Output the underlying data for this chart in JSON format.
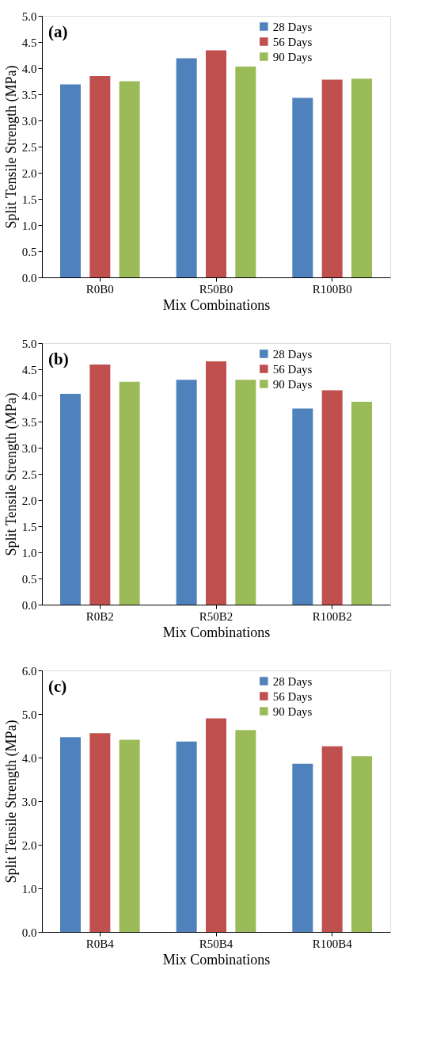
{
  "chart_data": [
    {
      "type": "bar",
      "xlabel": "Mix Combinations",
      "ylabel": "Split Tensile Strength (MPa)",
      "annotations": [
        "(a)"
      ],
      "categories": [
        "R0B0",
        "R50B0",
        "R100B0"
      ],
      "series": [
        {
          "name": "28 Days",
          "color": "#4f81bd",
          "values": [
            3.69,
            4.19,
            3.43
          ]
        },
        {
          "name": "56 Days",
          "color": "#c0504d",
          "values": [
            3.85,
            4.34,
            3.78
          ]
        },
        {
          "name": "90 Days",
          "color": "#9bbb59",
          "values": [
            3.75,
            4.03,
            3.8
          ]
        }
      ],
      "ylim": [
        0,
        5
      ],
      "yticks": [
        {
          "value": 0,
          "label": "0.0"
        },
        {
          "value": 0.5,
          "label": "0.5"
        },
        {
          "value": 1,
          "label": "1.0"
        },
        {
          "value": 1.5,
          "label": "1.5"
        },
        {
          "value": 2,
          "label": "2.0"
        },
        {
          "value": 2.5,
          "label": "2.5"
        },
        {
          "value": 3,
          "label": "3.0"
        },
        {
          "value": 3.5,
          "label": "3.5"
        },
        {
          "value": 4,
          "label": "4.0"
        },
        {
          "value": 4.5,
          "label": "4.5"
        },
        {
          "value": 5,
          "label": "5.0"
        }
      ],
      "grid": false,
      "legend": "top right"
    },
    {
      "type": "bar",
      "xlabel": "Mix Combinations",
      "ylabel": "Split Tensile Strength (MPa)",
      "annotations": [
        "(b)"
      ],
      "categories": [
        "R0B2",
        "R50B2",
        "R100B2"
      ],
      "series": [
        {
          "name": "28 Days",
          "color": "#4f81bd",
          "values": [
            4.03,
            4.3,
            3.75
          ]
        },
        {
          "name": "56 Days",
          "color": "#c0504d",
          "values": [
            4.59,
            4.65,
            4.1
          ]
        },
        {
          "name": "90 Days",
          "color": "#9bbb59",
          "values": [
            4.26,
            4.3,
            3.88
          ]
        }
      ],
      "ylim": [
        0,
        5
      ],
      "yticks": [
        {
          "value": 0,
          "label": "0.0"
        },
        {
          "value": 0.5,
          "label": "0.5"
        },
        {
          "value": 1,
          "label": "1.0"
        },
        {
          "value": 1.5,
          "label": "1.5"
        },
        {
          "value": 2,
          "label": "2.0"
        },
        {
          "value": 2.5,
          "label": "2.5"
        },
        {
          "value": 3,
          "label": "3.0"
        },
        {
          "value": 3.5,
          "label": "3.5"
        },
        {
          "value": 4,
          "label": "4.0"
        },
        {
          "value": 4.5,
          "label": "4.5"
        },
        {
          "value": 5,
          "label": "5.0"
        }
      ],
      "grid": false,
      "legend": "top right"
    },
    {
      "type": "bar",
      "xlabel": "Mix Combinations",
      "ylabel": "Split Tensile Strength (MPa)",
      "annotations": [
        "(c)"
      ],
      "categories": [
        "R0B4",
        "R50B4",
        "R100B4"
      ],
      "series": [
        {
          "name": "28 Days",
          "color": "#4f81bd",
          "values": [
            4.47,
            4.37,
            3.86
          ]
        },
        {
          "name": "56 Days",
          "color": "#c0504d",
          "values": [
            4.56,
            4.9,
            4.26
          ]
        },
        {
          "name": "90 Days",
          "color": "#9bbb59",
          "values": [
            4.41,
            4.63,
            4.03
          ]
        }
      ],
      "ylim": [
        0,
        6
      ],
      "yticks": [
        {
          "value": 0,
          "label": "0.0"
        },
        {
          "value": 1,
          "label": "1.0"
        },
        {
          "value": 2,
          "label": "2.0"
        },
        {
          "value": 3,
          "label": "3.0"
        },
        {
          "value": 4,
          "label": "4.0"
        },
        {
          "value": 5,
          "label": "5.0"
        },
        {
          "value": 6,
          "label": "6.0"
        }
      ],
      "grid": false,
      "legend": "top right"
    }
  ]
}
